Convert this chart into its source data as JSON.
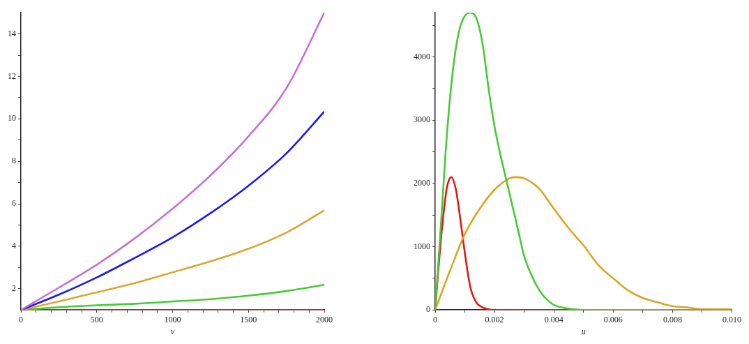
{
  "chart_data": [
    {
      "type": "line",
      "xlabel": "v",
      "xlim": [
        0,
        2000
      ],
      "ylim": [
        1,
        15
      ],
      "xticks": [
        0,
        {
          "value": 100,
          "label": null
        },
        {
          "value": 200,
          "label": null
        },
        {
          "value": 300,
          "label": null
        },
        {
          "value": 400,
          "label": null
        },
        500,
        {
          "value": 600,
          "label": null
        },
        {
          "value": 700,
          "label": null
        },
        {
          "value": 800,
          "label": null
        },
        {
          "value": 900,
          "label": null
        },
        1000,
        {
          "value": 1100,
          "label": null
        },
        {
          "value": 1200,
          "label": null
        },
        {
          "value": 1300,
          "label": null
        },
        {
          "value": 1400,
          "label": null
        },
        1500,
        {
          "value": 1600,
          "label": null
        },
        {
          "value": 1700,
          "label": null
        },
        {
          "value": 1800,
          "label": null
        },
        {
          "value": 1900,
          "label": null
        },
        2000
      ],
      "yticks": [
        2,
        {
          "value": 3,
          "label": null
        },
        4,
        {
          "value": 5,
          "label": null
        },
        6,
        {
          "value": 7,
          "label": null
        },
        8,
        {
          "value": 9,
          "label": null
        },
        10,
        {
          "value": 11,
          "label": null
        },
        12,
        {
          "value": 13,
          "label": null
        },
        14
      ],
      "x": [
        0,
        250,
        500,
        750,
        1000,
        1250,
        1500,
        1750,
        2000
      ],
      "grid": false,
      "legend": false,
      "marker": "none",
      "line_style": "solid",
      "series": [
        {
          "color": "#c86ed8",
          "values": [
            1,
            2.05,
            3.13,
            4.37,
            5.77,
            7.34,
            9.18,
            11.44,
            15
          ]
        },
        {
          "color": "#1a1af0",
          "values": [
            1,
            1.72,
            2.53,
            3.45,
            4.42,
            5.56,
            6.85,
            8.37,
            10.34
          ]
        },
        {
          "color": "#dca630",
          "values": [
            1,
            1.4,
            1.83,
            2.26,
            2.77,
            3.29,
            3.88,
            4.64,
            5.69
          ]
        },
        {
          "color": "#44cc33",
          "values": [
            1,
            1.13,
            1.22,
            1.29,
            1.4,
            1.51,
            1.67,
            1.89,
            2.18
          ]
        },
        {
          "color": "#ee1111",
          "values": [
            1,
            1,
            1,
            1,
            1,
            1,
            1,
            1,
            1
          ]
        }
      ]
    },
    {
      "type": "line",
      "xlabel": "u",
      "xlim": [
        0,
        0.01
      ],
      "ylim": [
        0,
        4700
      ],
      "xticks": [
        0,
        {
          "value": 0.001,
          "label": null
        },
        0.002,
        {
          "value": 0.003,
          "label": null
        },
        0.004,
        {
          "value": 0.005,
          "label": null
        },
        0.006,
        {
          "value": 0.007,
          "label": null
        },
        0.008,
        {
          "value": 0.009,
          "label": null
        },
        {
          "value": 0.01,
          "label": "0.010"
        }
      ],
      "yticks": [
        0,
        {
          "value": 500,
          "label": null
        },
        1000,
        {
          "value": 1500,
          "label": null
        },
        2000,
        {
          "value": 2500,
          "label": null
        },
        3000,
        {
          "value": 3500,
          "label": null
        },
        4000,
        {
          "value": 4500,
          "label": null
        }
      ],
      "grid": false,
      "legend": false,
      "marker": "none",
      "line_style": "solid",
      "series": [
        {
          "color": "#44cc33",
          "x": [
            0,
            0.0002,
            0.0004,
            0.0006,
            0.0008,
            0.001,
            0.0012,
            0.0014,
            0.0016,
            0.0018,
            0.002,
            0.0022,
            0.0024,
            0.0026,
            0.0028,
            0.003,
            0.0032,
            0.0034,
            0.0036,
            0.0038,
            0.004,
            0.0045,
            0.005,
            0.006,
            0.01
          ],
          "values": [
            0,
            1400,
            2800,
            3800,
            4400,
            4650,
            4700,
            4600,
            4200,
            3500,
            2900,
            2450,
            2050,
            1650,
            1250,
            850,
            600,
            400,
            250,
            150,
            80,
            20,
            0,
            0,
            0
          ]
        },
        {
          "color": "#d9a520",
          "x": [
            0,
            0.0005,
            0.001,
            0.0015,
            0.002,
            0.0025,
            0.0027,
            0.003,
            0.0035,
            0.004,
            0.0045,
            0.005,
            0.0055,
            0.006,
            0.0065,
            0.007,
            0.0075,
            0.008,
            0.0085,
            0.009,
            0.01
          ],
          "values": [
            0,
            620,
            1200,
            1600,
            1900,
            2080,
            2100,
            2080,
            1920,
            1600,
            1290,
            1020,
            710,
            500,
            310,
            190,
            120,
            60,
            40,
            10,
            10
          ]
        },
        {
          "color": "#ee1111",
          "x": [
            0,
            0.0001,
            0.0002,
            0.0003,
            0.0004,
            0.00055,
            0.0007,
            0.0008,
            0.0009,
            0.001,
            0.0011,
            0.0012,
            0.0014,
            0.0016,
            0.0018,
            0.002,
            0.003,
            0.01
          ],
          "values": [
            0,
            600,
            1150,
            1600,
            1950,
            2100,
            1900,
            1600,
            1250,
            900,
            580,
            330,
            110,
            40,
            10,
            0,
            0,
            0
          ]
        }
      ]
    }
  ]
}
